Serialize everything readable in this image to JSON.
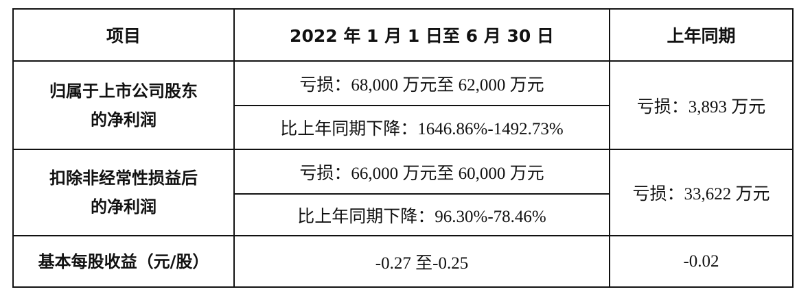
{
  "header": {
    "col1": "项目",
    "col2": "2022 年 1 月 1 日至 6 月 30 日",
    "col3": "上年同期"
  },
  "rows": [
    {
      "label_line1": "归属于上市公司股东",
      "label_line2": "的净利润",
      "current_loss": "亏损：68,000 万元至 62,000 万元",
      "current_change": "比上年同期下降：1646.86%-1492.73%",
      "prior": "亏损：3,893 万元"
    },
    {
      "label_line1": "扣除非经常性损益后",
      "label_line2": "的净利润",
      "current_loss": "亏损：66,000 万元至 60,000 万元",
      "current_change": "比上年同期下降：96.30%-78.46%",
      "prior": "亏损：33,622 万元"
    }
  ],
  "eps": {
    "label": "基本每股收益（元/股）",
    "current": "-0.27 至-0.25",
    "prior": "-0.02"
  }
}
